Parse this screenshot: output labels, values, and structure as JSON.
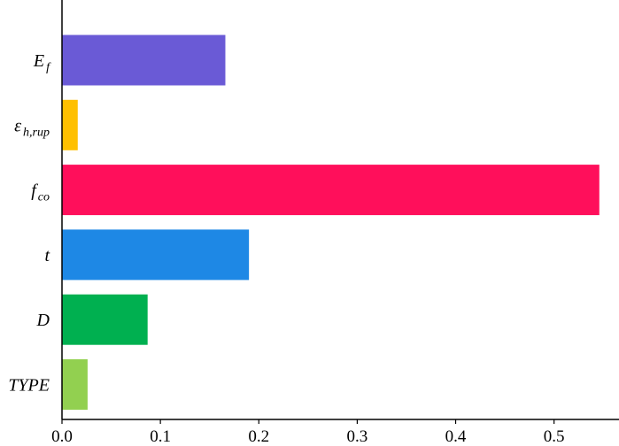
{
  "chart_data": {
    "type": "bar",
    "orientation": "horizontal",
    "categories": [
      {
        "main": "E",
        "sub": "f",
        "color": "#6A5AD6"
      },
      {
        "main": "ε",
        "sub": "h,rup",
        "color": "#FFC000"
      },
      {
        "main": "f",
        "sub": "co",
        "color": "#FF0F5B"
      },
      {
        "main": "t",
        "sub": "",
        "color": "#1E88E5"
      },
      {
        "main": "D",
        "sub": "",
        "color": "#00B050"
      },
      {
        "main": "TYPE",
        "sub": "",
        "color": "#92D050"
      }
    ],
    "values": [
      0.166,
      0.016,
      0.546,
      0.19,
      0.087,
      0.026
    ],
    "xlim": [
      0,
      0.566
    ],
    "xticks": [
      {
        "value": 0.0,
        "label": "0.0"
      },
      {
        "value": 0.1,
        "label": "0.1"
      },
      {
        "value": 0.2,
        "label": "0.2"
      },
      {
        "value": 0.3,
        "label": "0.3"
      },
      {
        "value": 0.4,
        "label": "0.4"
      },
      {
        "value": 0.5,
        "label": "0.5"
      }
    ],
    "title": "",
    "xlabel": "",
    "ylabel": "",
    "grid": false
  }
}
